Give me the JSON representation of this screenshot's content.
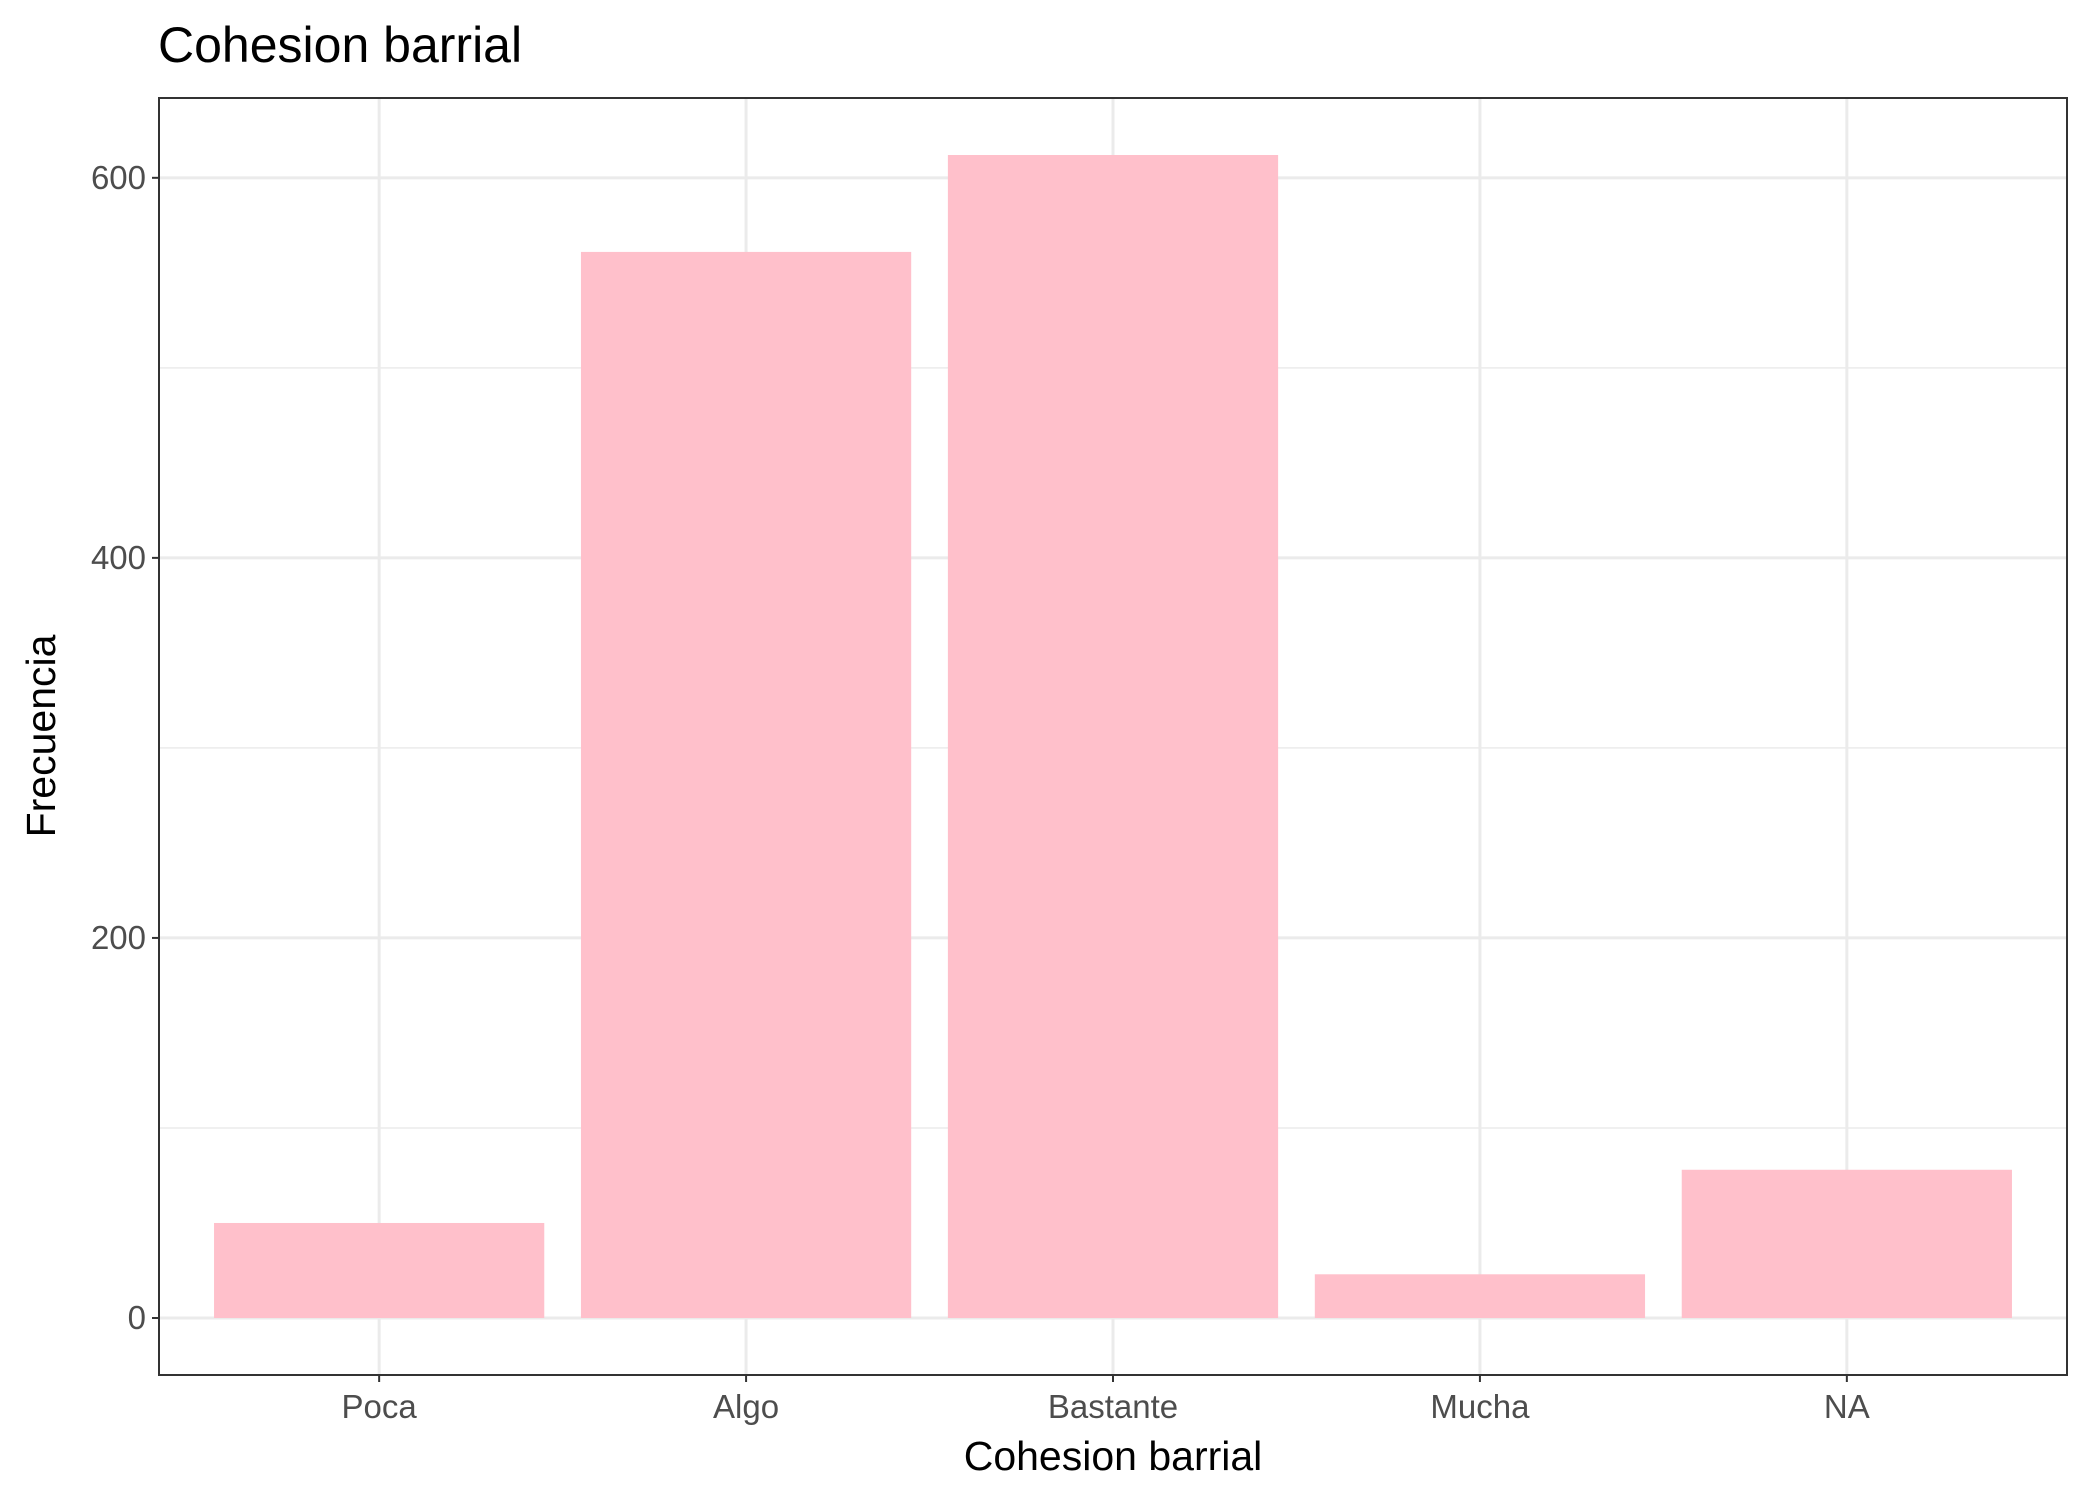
{
  "chart_data": {
    "type": "bar",
    "title": "Cohesion barrial",
    "xlabel": "Cohesion barrial",
    "ylabel": "Frecuencia",
    "categories": [
      "Poca",
      "Algo",
      "Bastante",
      "Mucha",
      "NA"
    ],
    "values": [
      50,
      561,
      612,
      23,
      78
    ],
    "ylim": [
      -30,
      642
    ],
    "y_ticks": [
      0,
      200,
      400,
      600
    ],
    "y_tick_labels": [
      "0",
      "200",
      "400",
      "600"
    ],
    "y_minor_ticks": [
      100,
      300,
      500
    ],
    "grid": true,
    "legend": "none",
    "colors": {
      "bar": "#FFC0CB",
      "panel_border": "#333333",
      "grid": "#ebebeb",
      "tick_label": "#4d4d4d"
    }
  }
}
